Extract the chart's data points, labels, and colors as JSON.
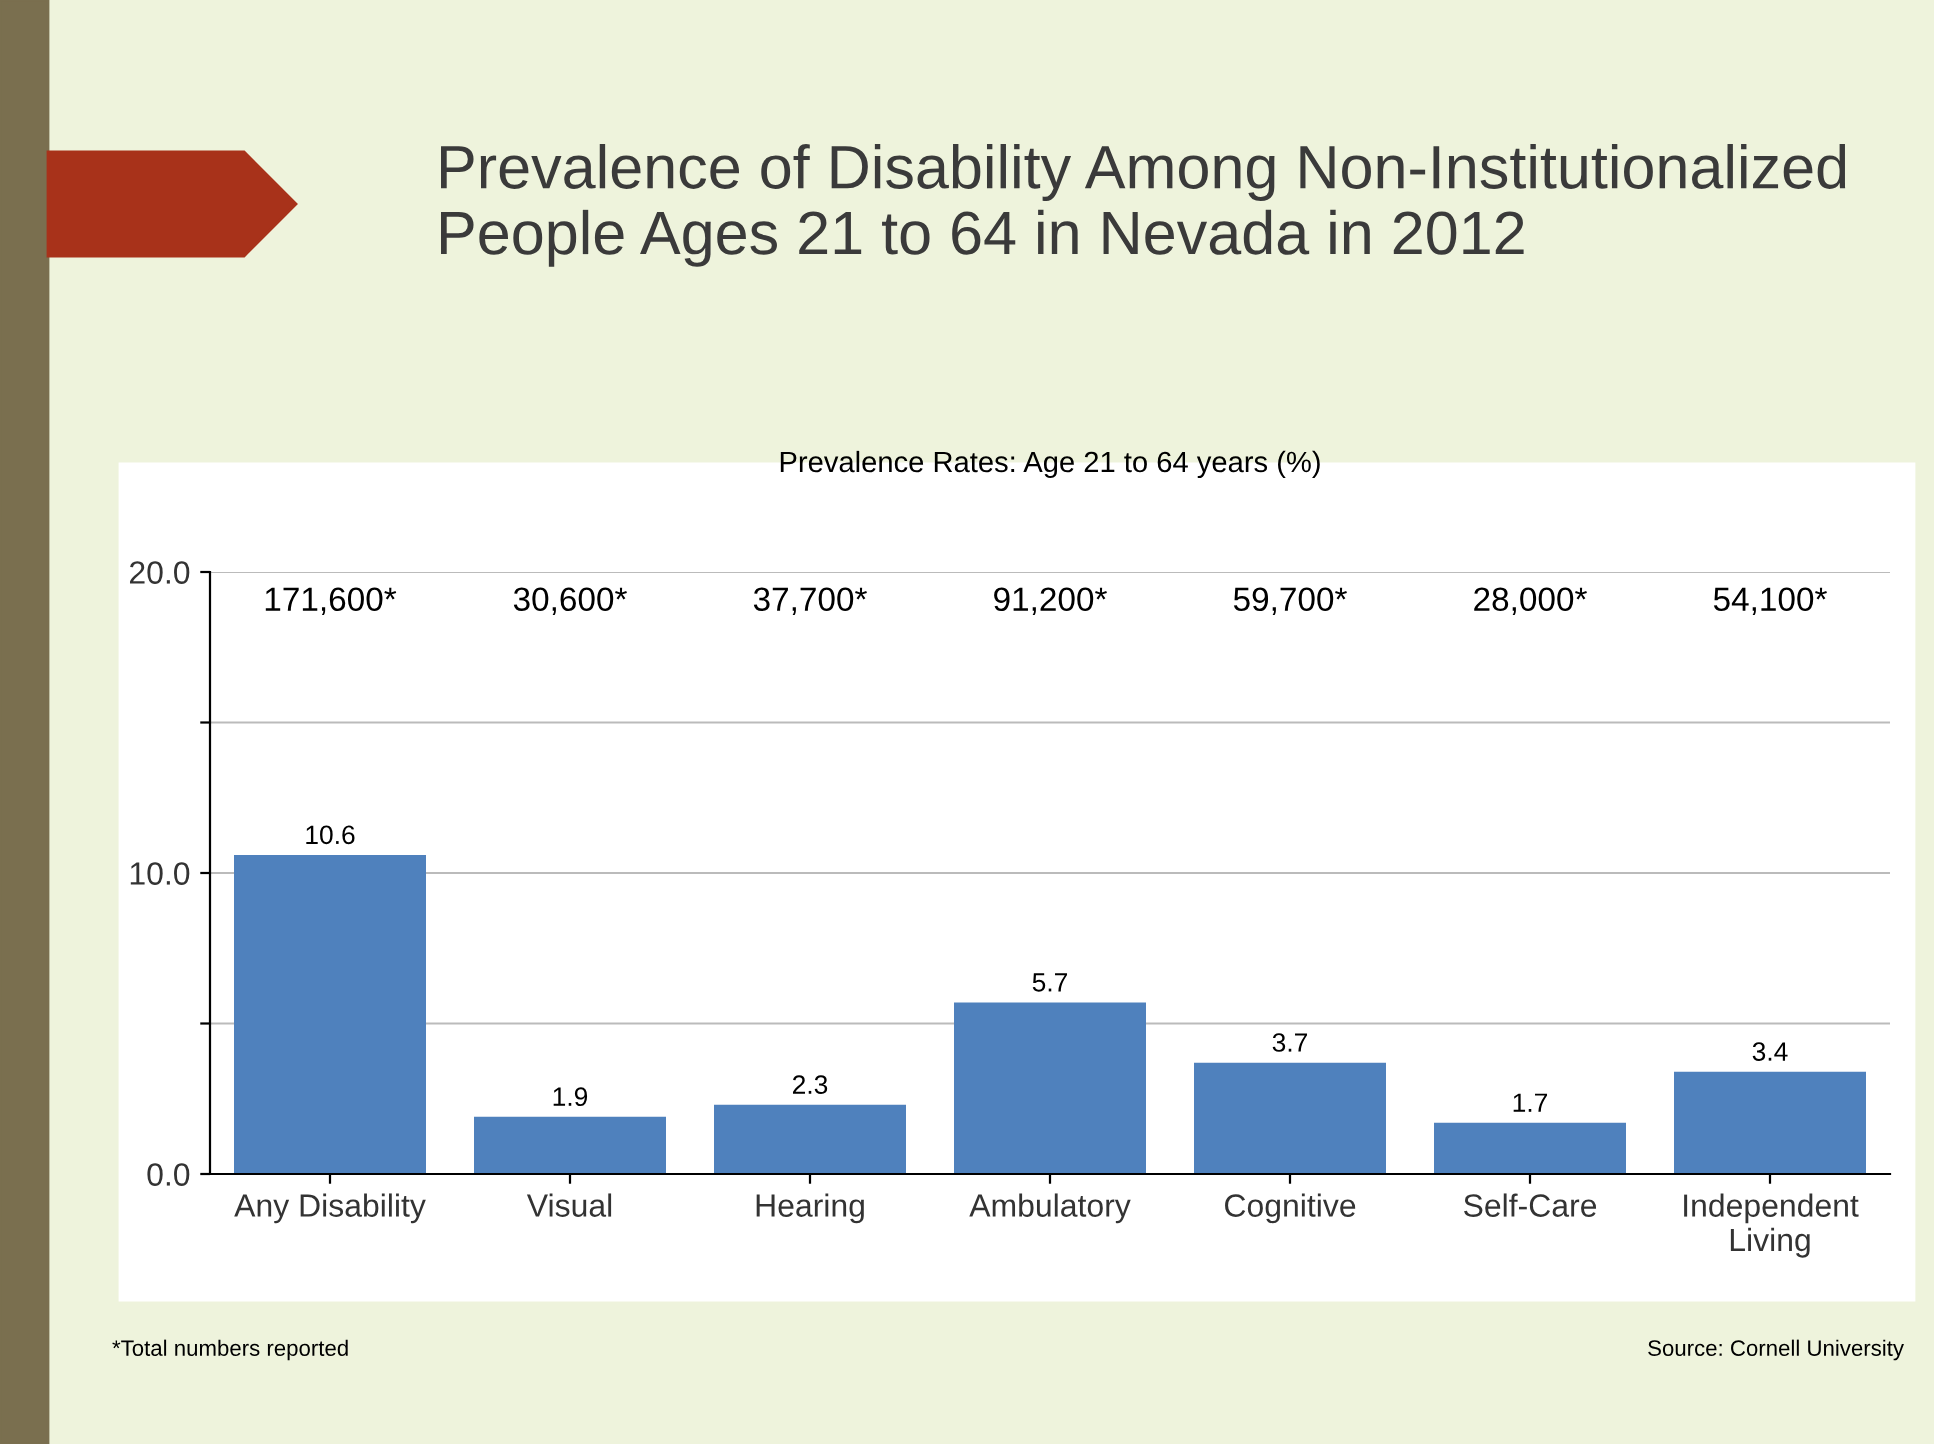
{
  "chart_data": {
    "type": "bar",
    "title": "Prevalence of Disability Among Non-Institutionalized People Ages 21 to 64 in Nevada in 2012",
    "subtitle": "Prevalence Rates: Age 21 to 64 years (%)",
    "categories": [
      "Any Disability",
      "Visual",
      "Hearing",
      "Ambulatory",
      "Cognitive",
      "Self-Care",
      "Independent Living"
    ],
    "values": [
      10.6,
      1.9,
      2.3,
      5.7,
      3.7,
      1.7,
      3.4
    ],
    "color": "#4f81bd",
    "data_labels": true,
    "ylim": [
      0,
      20
    ],
    "yticks": [
      {
        "value": 0,
        "label": "0.0"
      },
      {
        "value": 5,
        "label": null
      },
      {
        "value": 10,
        "label": "10.0"
      },
      {
        "value": 15,
        "label": null
      },
      {
        "value": 20,
        "label": "20.0"
      }
    ],
    "grid": "y",
    "legend": false,
    "annotations": [
      "171,600*",
      "30,600*",
      "37,700*",
      "91,200*",
      "59,700*",
      "28,000*",
      "54,100*",
      "*Total numbers reported",
      "Source: Cornell University"
    ]
  }
}
